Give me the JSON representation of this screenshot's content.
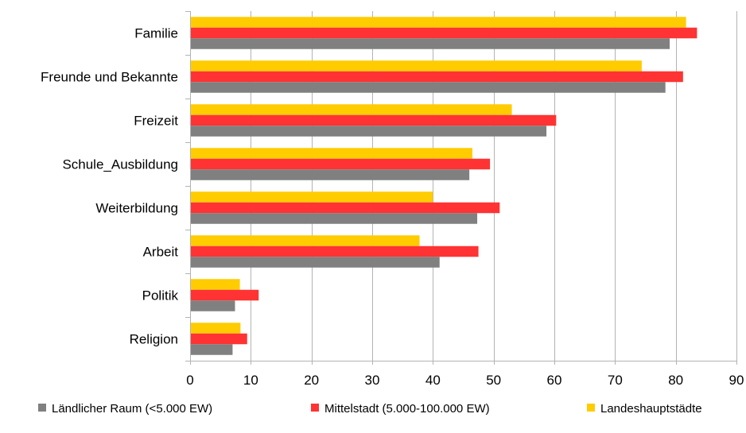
{
  "chart_data": {
    "type": "bar",
    "orientation": "horizontal",
    "categories": [
      "Familie",
      "Freunde und Bekannte",
      "Freizeit",
      "Schule_Ausbildung",
      "Weiterbildung",
      "Arbeit",
      "Politik",
      "Religion"
    ],
    "series": [
      {
        "name": "Ländlicher Raum (<5.000 EW)",
        "color": "#808080",
        "values": [
          79,
          78.3,
          58.7,
          46,
          47.3,
          41.1,
          7.4,
          7
        ]
      },
      {
        "name": "Mittelstadt (5.000-100.000 EW)",
        "color": "#ff3333",
        "values": [
          83.5,
          81.2,
          60.3,
          49.4,
          51,
          47.5,
          11.3,
          9.4
        ]
      },
      {
        "name": "Landeshauptstädte",
        "color": "#ffcc00",
        "values": [
          81.7,
          74.4,
          53,
          46.5,
          40,
          37.8,
          8.2,
          8.3
        ]
      }
    ],
    "xlim": [
      0,
      90
    ],
    "xticks": [
      0,
      10,
      20,
      30,
      40,
      50,
      60,
      70,
      80,
      90
    ],
    "grid": "vertical",
    "legend_position": "bottom",
    "title": "",
    "xlabel": "",
    "ylabel": ""
  }
}
